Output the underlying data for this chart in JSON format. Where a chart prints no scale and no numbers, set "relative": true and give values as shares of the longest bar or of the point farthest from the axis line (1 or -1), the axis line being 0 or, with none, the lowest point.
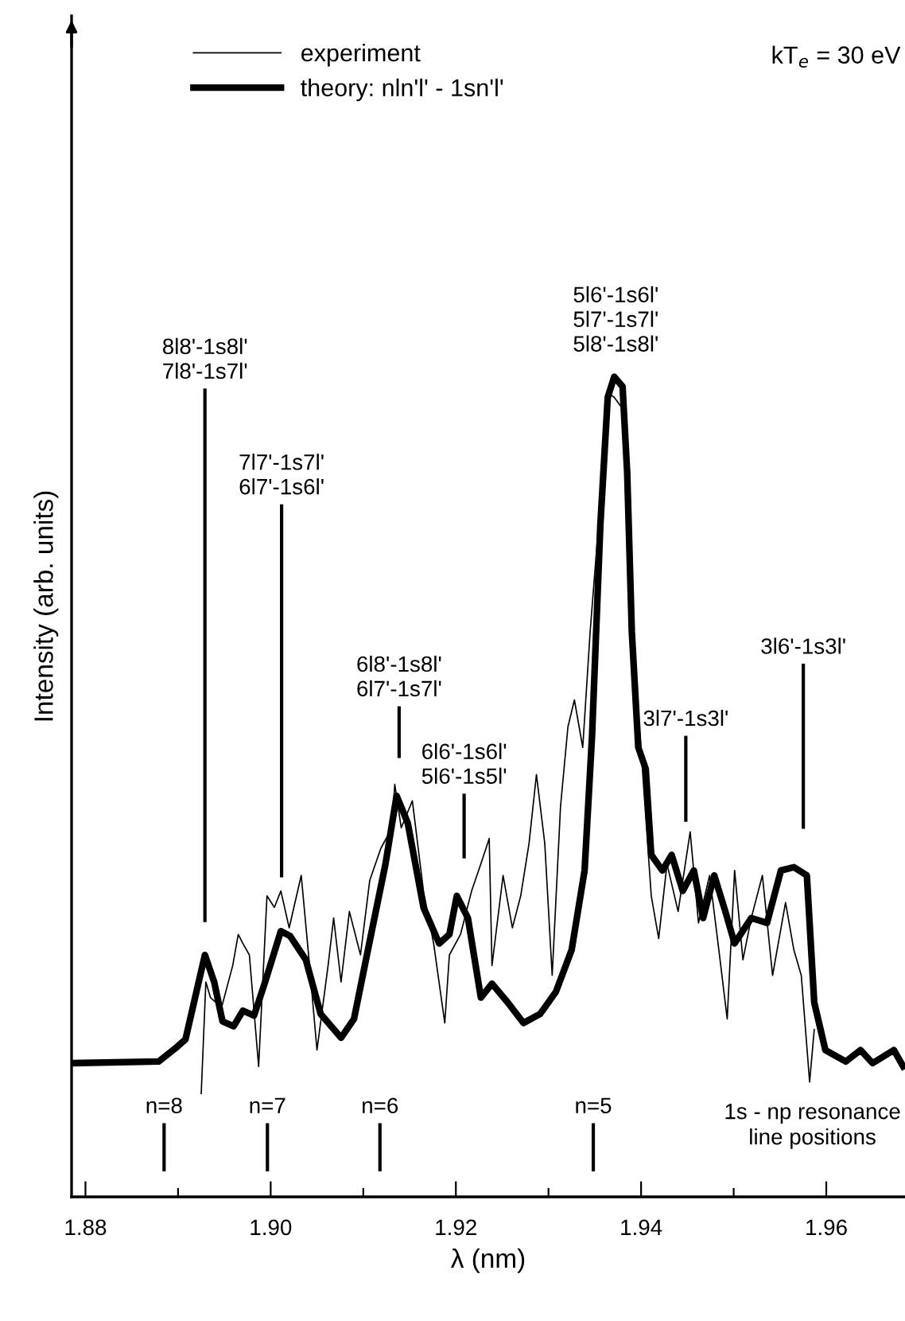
{
  "chart_data": {
    "type": "line",
    "relative": true,
    "xlabel": "λ (nm)",
    "ylabel": "Intensity (arb. units)",
    "xlim": [
      1.8785,
      1.9685
    ],
    "xticks": [
      {
        "value": 1.88,
        "label": "1.88"
      },
      {
        "value": 1.89,
        "label": null
      },
      {
        "value": 1.9,
        "label": "1.90"
      },
      {
        "value": 1.91,
        "label": null
      },
      {
        "value": 1.92,
        "label": "1.92"
      },
      {
        "value": 1.93,
        "label": null
      },
      {
        "value": 1.94,
        "label": "1.94"
      },
      {
        "value": 1.95,
        "label": null
      },
      {
        "value": 1.96,
        "label": "1.96"
      }
    ],
    "legend": "top left",
    "grid": false,
    "tick_labels": "x",
    "series": [
      {
        "name": "experiment",
        "color": "#000000",
        "x": [
          1.8925,
          1.893,
          1.8935,
          1.8947,
          1.8959,
          1.8965,
          1.897,
          1.8977,
          1.8987,
          1.8996,
          1.9004,
          1.9011,
          1.902,
          1.9033,
          1.9042,
          1.905,
          1.9062,
          1.9068,
          1.9076,
          1.9085,
          1.9097,
          1.9107,
          1.9119,
          1.9131,
          1.9134,
          1.9141,
          1.9153,
          1.9165,
          1.9176,
          1.9188,
          1.9193,
          1.9205,
          1.9217,
          1.9227,
          1.9236,
          1.9239,
          1.9251,
          1.9261,
          1.927,
          1.9279,
          1.9287,
          1.9296,
          1.9304,
          1.9313,
          1.9321,
          1.9328,
          1.9337,
          1.9345,
          1.9354,
          1.9363,
          1.9371,
          1.938,
          1.9388,
          1.9393,
          1.9399,
          1.9411,
          1.9419,
          1.9428,
          1.944,
          1.9453,
          1.9462,
          1.9474,
          1.9484,
          1.9493,
          1.9501,
          1.951,
          1.9519,
          1.9531,
          1.9542,
          1.9556,
          1.9565,
          1.9573,
          1.9582,
          1.9587
        ],
        "values": [
          0.126,
          0.262,
          0.243,
          0.231,
          0.282,
          0.32,
          0.309,
          0.295,
          0.159,
          0.367,
          0.353,
          0.373,
          0.328,
          0.392,
          0.282,
          0.179,
          0.282,
          0.34,
          0.262,
          0.348,
          0.295,
          0.386,
          0.425,
          0.45,
          0.503,
          0.45,
          0.483,
          0.373,
          0.309,
          0.212,
          0.295,
          0.32,
          0.373,
          0.406,
          0.437,
          0.282,
          0.392,
          0.328,
          0.367,
          0.431,
          0.515,
          0.431,
          0.27,
          0.476,
          0.573,
          0.606,
          0.548,
          0.689,
          0.819,
          0.981,
          0.975,
          0.961,
          0.819,
          0.625,
          0.561,
          0.367,
          0.315,
          0.406,
          0.348,
          0.445,
          0.334,
          0.392,
          0.301,
          0.217,
          0.398,
          0.289,
          0.34,
          0.392,
          0.27,
          0.359,
          0.301,
          0.27,
          0.14,
          0.204
        ]
      },
      {
        "name": "theory: nln'l' - 1sn'l'",
        "color": "#000000",
        "x": [
          1.8785,
          1.8879,
          1.8899,
          1.8908,
          1.8929,
          1.8939,
          1.8948,
          1.896,
          1.897,
          1.8982,
          1.8994,
          1.9011,
          1.9021,
          1.9038,
          1.9054,
          1.9076,
          1.909,
          1.9105,
          1.9124,
          1.9136,
          1.9148,
          1.9165,
          1.9182,
          1.9193,
          1.9201,
          1.9213,
          1.9227,
          1.9239,
          1.9256,
          1.9273,
          1.9291,
          1.9308,
          1.9325,
          1.9339,
          1.9347,
          1.9356,
          1.9364,
          1.9371,
          1.938,
          1.9385,
          1.939,
          1.9397,
          1.9405,
          1.9411,
          1.9423,
          1.9433,
          1.9445,
          1.9457,
          1.9467,
          1.9479,
          1.9491,
          1.9501,
          1.9519,
          1.9536,
          1.9551,
          1.9565,
          1.9579,
          1.9587,
          1.9599,
          1.9621,
          1.9637,
          1.965,
          1.9673,
          1.9683
        ],
        "values": [
          0.163,
          0.165,
          0.183,
          0.192,
          0.295,
          0.262,
          0.214,
          0.208,
          0.227,
          0.221,
          0.262,
          0.324,
          0.318,
          0.289,
          0.223,
          0.194,
          0.217,
          0.301,
          0.406,
          0.489,
          0.456,
          0.353,
          0.309,
          0.32,
          0.367,
          0.34,
          0.243,
          0.26,
          0.237,
          0.212,
          0.223,
          0.25,
          0.301,
          0.398,
          0.561,
          0.819,
          0.975,
          1.0,
          0.988,
          0.883,
          0.689,
          0.548,
          0.522,
          0.417,
          0.398,
          0.417,
          0.373,
          0.398,
          0.34,
          0.392,
          0.348,
          0.309,
          0.34,
          0.334,
          0.398,
          0.402,
          0.392,
          0.237,
          0.179,
          0.165,
          0.179,
          0.163,
          0.179,
          0.159
        ]
      }
    ],
    "annotations": [
      "8l8'-1s8l'\n7l8'-1s7l'",
      "7l7'-1s7l'\n6l7'-1s6l'",
      "6l8'-1s8l'\n6l7'-1s7l'",
      "6l6'-1s6l'\n5l6'-1s5l'",
      "5l6'-1s6l'\n5l7'-1s7l'\n5l8'-1s8l'",
      "3l7'-1s3l'",
      "3l6'-1s3l'",
      "n=8",
      "n=7",
      "n=6",
      "n=5",
      "1s - np resonance\nline positions",
      "kT$_{e}$ = 30 eV"
    ]
  }
}
